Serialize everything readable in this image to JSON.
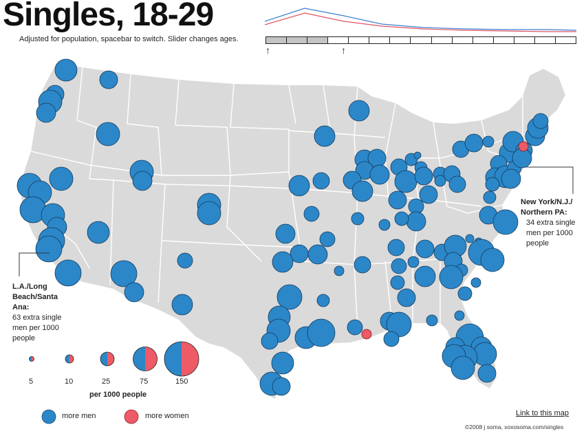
{
  "header": {
    "title": "Singles, 18-29",
    "subtitle": "Adjusted for population, spacebar to switch. Slider changes ages."
  },
  "colors": {
    "more_men": "#2b87c8",
    "more_women": "#ee5a66",
    "land": "#dadada",
    "border": "#ffffff",
    "line_men": "#3a7fd0",
    "line_women": "#e05060"
  },
  "slider": {
    "segments": 15,
    "selected_range_start": 0,
    "selected_range_end": 2
  },
  "callouts": {
    "ny": {
      "title": "New York/N.J./ Northern PA:",
      "text": "34 extra single men per 1000 people"
    },
    "la": {
      "title": "L.A./Long Beach/Santa Ana:",
      "text": "63 extra single men per 1000 people"
    }
  },
  "legend": {
    "scale_values": [
      "5",
      "10",
      "25",
      "75",
      "150"
    ],
    "scale_label": "per 1000 people",
    "more_men": "more men",
    "more_women": "more women"
  },
  "footer": {
    "link": "Link to this map",
    "copyright": "©2008 j soma, xoxosoma.com/singles"
  }
}
